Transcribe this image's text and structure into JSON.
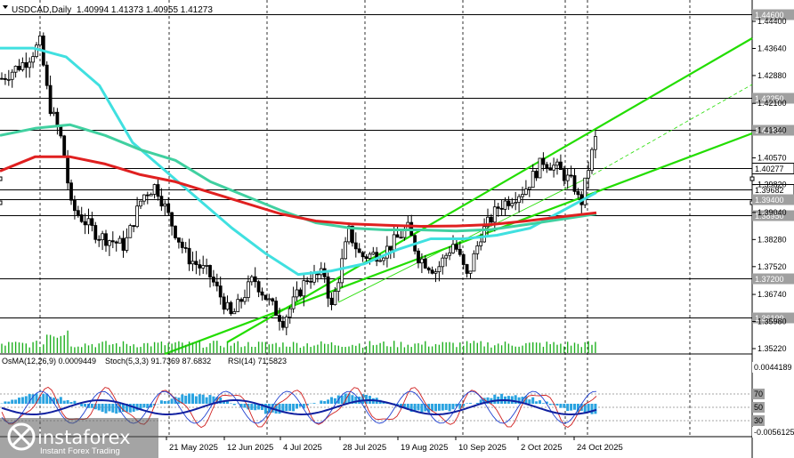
{
  "header": {
    "symbol_text": "USDCAD,Daily",
    "ohlc_text": "1.40994 1.41373 1.40955 1.41273"
  },
  "chart_data": {
    "type": "candlestick",
    "yaxis_ticks": [
      "1.44400",
      "1.43640",
      "1.42880",
      "1.42100",
      "1.41340",
      "1.40570",
      "1.39820",
      "1.39040",
      "1.38280",
      "1.37520",
      "1.36740",
      "1.35980",
      "1.35220"
    ],
    "price_labels": [
      {
        "text": "1.44600",
        "value": 1.446,
        "color": "#b0b0b0"
      },
      {
        "text": "1.42250",
        "value": 1.4225,
        "color": "#b0b0b0"
      },
      {
        "text": "1.41350",
        "value": 1.4135,
        "color": "#b0b0b0"
      },
      {
        "text": "1.40277",
        "value": 1.40277,
        "color": "#ffffff"
      },
      {
        "text": "1.39682",
        "value": 1.39682,
        "color": "#ffffff"
      },
      {
        "text": "1.39400",
        "value": 1.394,
        "color": "#b0b0b0"
      },
      {
        "text": "1.38950",
        "value": 1.3895,
        "color": "#b0b0b0"
      },
      {
        "text": "1.37200",
        "value": 1.372,
        "color": "#b0b0b0"
      },
      {
        "text": "1.36100",
        "value": 1.361,
        "color": "#b0b0b0"
      }
    ],
    "x_labels": [
      "21 May 2025",
      "12 Jun 2025",
      "4 Jul 2025",
      "28 Jul 2025",
      "19 Aug 2025",
      "10 Sep 2025",
      "2 Oct 2025",
      "24 Oct 2025"
    ],
    "series": [
      {
        "name": "EMA fast",
        "color": "#40e0e0",
        "values": [
          1.4365,
          1.4365,
          1.434,
          1.426,
          1.41,
          1.402,
          1.394,
          1.386,
          1.379,
          1.373,
          1.374,
          1.376,
          1.38,
          1.383,
          1.383,
          1.384,
          1.386,
          1.391,
          1.396
        ]
      },
      {
        "name": "EMA mid",
        "color": "#40d0a0",
        "values": [
          1.412,
          1.414,
          1.415,
          1.412,
          1.408,
          1.405,
          1.399,
          1.395,
          1.391,
          1.3875,
          1.386,
          1.3855,
          1.3855,
          1.3852,
          1.3856,
          1.387,
          1.3885,
          1.39
        ]
      },
      {
        "name": "EMA slow",
        "color": "#e02020",
        "values": [
          1.402,
          1.406,
          1.406,
          1.404,
          1.401,
          1.399,
          1.396,
          1.393,
          1.39,
          1.388,
          1.3872,
          1.3868,
          1.3865,
          1.3866,
          1.387,
          1.388,
          1.3892,
          1.3903
        ]
      }
    ],
    "osma_text": "OsMA(12,26,9) 0.0009449",
    "stoch_text": "Stoch(5,3,3) 91.7369 87.6832",
    "rsi_text": "RSI(14) 71.5823",
    "indicator_ticks": [
      "0.0044189",
      "70",
      "50",
      "30",
      "-0.0056125"
    ],
    "levels_color": "#1a1a1a"
  },
  "branding": {
    "name": "instaforex",
    "tagline": "Instant Forex Trading"
  }
}
